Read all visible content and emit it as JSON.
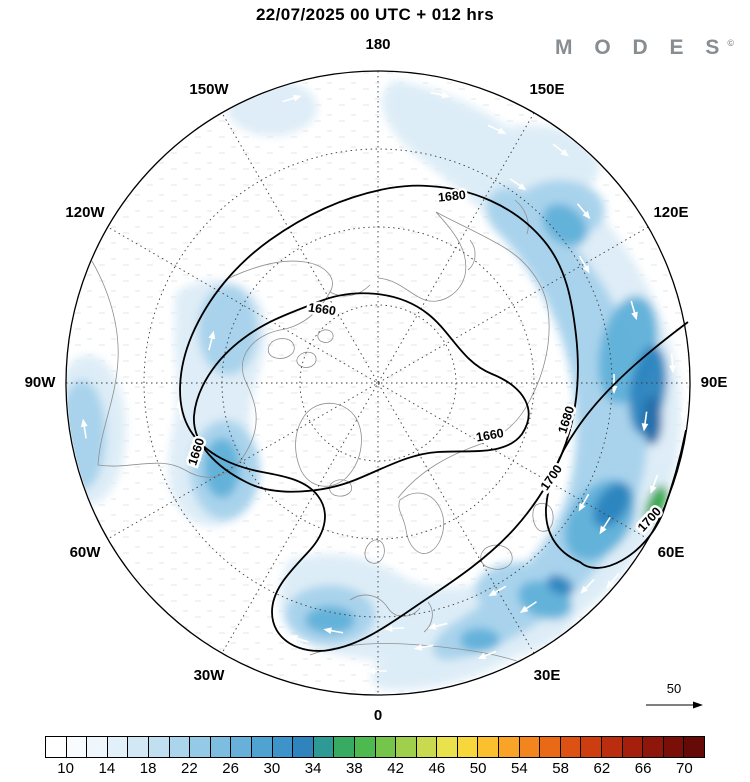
{
  "header": {
    "title": "22/07/2025  00 UTC  + 012 hrs"
  },
  "brand": {
    "letters": "M O D E S",
    "sup": "©"
  },
  "map": {
    "lon_labels": {
      "l180": "180",
      "l150e": "150E",
      "l120e": "120E",
      "l90e": "90E",
      "l60e": "60E",
      "l30e": "30E",
      "l0": "0",
      "l30w": "30W",
      "l60w": "60W",
      "l90w": "90W",
      "l120w": "120W",
      "l150w": "150W"
    },
    "contour_labels": {
      "c1": "1680",
      "c2": "1660",
      "c3": "1660",
      "c4": "1660",
      "c5": "1680",
      "c6": "1700",
      "c7": "1700"
    },
    "ref_vector": {
      "label": "50"
    }
  },
  "colorbar": {
    "ticks": [
      "10",
      "14",
      "18",
      "22",
      "26",
      "30",
      "34",
      "38",
      "42",
      "46",
      "50",
      "54",
      "58",
      "62",
      "66",
      "70"
    ],
    "colors": [
      "#ffffff",
      "#f9fcfe",
      "#eff7fc",
      "#e2f1f9",
      "#d2e8f5",
      "#c0dff1",
      "#abd5ec",
      "#95cae6",
      "#7dbde0",
      "#66b0d9",
      "#50a2d1",
      "#3e93c8",
      "#2f84be",
      "#2d9a95",
      "#38ab63",
      "#4eb94f",
      "#75c44c",
      "#a0cf4d",
      "#c9da4f",
      "#e9e24c",
      "#f8d73d",
      "#fbc02d",
      "#f9a426",
      "#f2851e",
      "#e96917",
      "#dd5113",
      "#cd3d10",
      "#ba2d0e",
      "#a5200c",
      "#8f160a",
      "#7a0f08",
      "#650a06"
    ]
  },
  "chart_data": {
    "type": "heatmap",
    "title": "22/07/2025 00 UTC + 012 hrs",
    "description": "Northern Hemisphere polar-stereographic weather chart: shaded wind speed with white wind vectors and black geopotential height contours (MODES).",
    "shading": {
      "variable": "wind speed",
      "colorbar_tick_values": [
        10,
        14,
        18,
        22,
        26,
        30,
        34,
        38,
        42,
        46,
        50,
        54,
        58,
        62,
        66,
        70
      ],
      "colorbar_cell_step": 2,
      "colorbar_range": [
        8,
        72
      ]
    },
    "contours": {
      "variable": "geopotential height",
      "labeled_levels": [
        1660,
        1680,
        1700
      ],
      "label_occurrences": [
        "1680",
        "1660",
        "1660",
        "1660",
        "1680",
        "1700",
        "1700"
      ]
    },
    "longitude_ring_labels": [
      "180",
      "150E",
      "120E",
      "90E",
      "60E",
      "30E",
      "0",
      "30W",
      "60W",
      "90W",
      "120W",
      "150W"
    ],
    "reference_vector_value": 50,
    "legend_position": "bottom",
    "grid": "dashed polar graticule, radial lines every 30 degrees, 3 inner latitude circles"
  }
}
